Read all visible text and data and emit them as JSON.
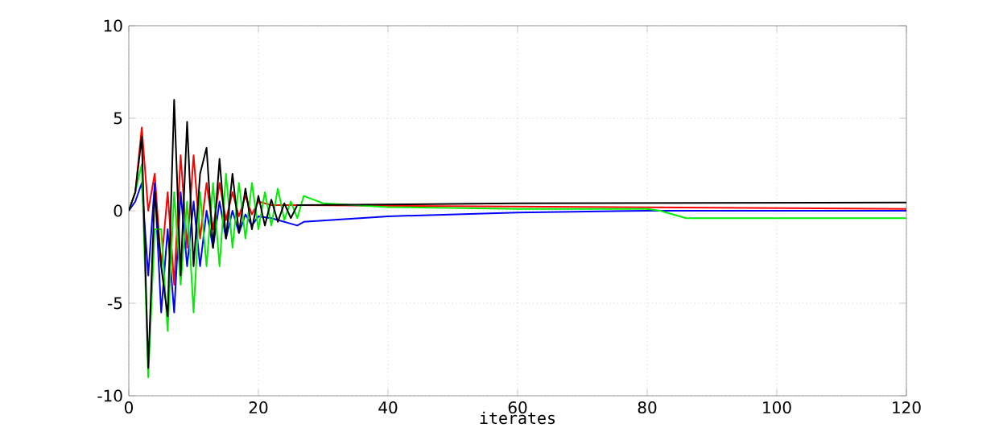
{
  "chart_data": {
    "type": "line",
    "xlabel": "iterates",
    "xlim": [
      0,
      120
    ],
    "ylim": [
      -10,
      10
    ],
    "xticks": [
      0,
      20,
      40,
      60,
      80,
      100,
      120
    ],
    "yticks": [
      -10,
      -5,
      0,
      5,
      10
    ],
    "grid": true,
    "series": [
      {
        "color": "#ff0000",
        "x": [
          0,
          1,
          2,
          3,
          4,
          5,
          6,
          7,
          8,
          9,
          10,
          11,
          12,
          13,
          14,
          15,
          16,
          17,
          18,
          19,
          20,
          22,
          26,
          120
        ],
        "values": [
          0,
          1,
          4.5,
          0,
          2,
          -3,
          1,
          -4,
          3,
          -2,
          3,
          -1.5,
          1.5,
          -1,
          1.5,
          -0.5,
          1,
          -0.3,
          0.8,
          -0.2,
          0.5,
          0.3,
          0.3,
          0.1
        ]
      },
      {
        "color": "#0000ff",
        "x": [
          0,
          1,
          2,
          3,
          4,
          5,
          6,
          7,
          8,
          9,
          10,
          11,
          12,
          13,
          14,
          15,
          16,
          17,
          18,
          19,
          20,
          22,
          26,
          27,
          40,
          60,
          80,
          120
        ],
        "values": [
          0,
          0.5,
          1.5,
          -3.5,
          1.5,
          -5.5,
          -1,
          -5.5,
          1,
          -3,
          0.5,
          -3,
          0,
          -2,
          0.5,
          -1.5,
          0,
          -1.2,
          -0.2,
          -0.8,
          -0.3,
          -0.4,
          -0.8,
          -0.6,
          -0.3,
          -0.1,
          0,
          0
        ]
      },
      {
        "color": "#00ee00",
        "x": [
          0,
          1,
          2,
          3,
          4,
          5,
          6,
          7,
          8,
          9,
          10,
          11,
          12,
          13,
          14,
          15,
          16,
          17,
          18,
          19,
          20,
          21,
          22,
          23,
          24,
          25,
          26,
          27,
          30,
          40,
          60,
          80,
          82,
          86,
          120
        ],
        "values": [
          0,
          1,
          2.5,
          -9,
          -1,
          -1,
          -6.5,
          1,
          -4,
          0.5,
          -5.5,
          1,
          -3,
          1.5,
          -3,
          2,
          -2,
          1.5,
          -1.5,
          1.5,
          -1,
          1,
          -0.8,
          1.2,
          -0.5,
          0.5,
          -0.4,
          0.8,
          0.4,
          0.2,
          0.1,
          0.1,
          0,
          -0.4,
          -0.4
        ]
      },
      {
        "color": "#000000",
        "x": [
          0,
          1,
          2,
          3,
          4,
          5,
          6,
          7,
          8,
          9,
          10,
          11,
          12,
          13,
          14,
          15,
          16,
          17,
          18,
          19,
          20,
          21,
          22,
          23,
          24,
          25,
          26,
          60,
          120
        ],
        "values": [
          0,
          1,
          4,
          -8.5,
          1,
          -3,
          -5.7,
          6,
          -3.5,
          4.8,
          -3,
          2,
          3.4,
          -2,
          2.8,
          -1.5,
          2,
          -1.2,
          1.2,
          -1,
          0.8,
          -0.8,
          0.6,
          -0.6,
          0.4,
          -0.4,
          0.3,
          0.4,
          0.45
        ]
      }
    ]
  }
}
